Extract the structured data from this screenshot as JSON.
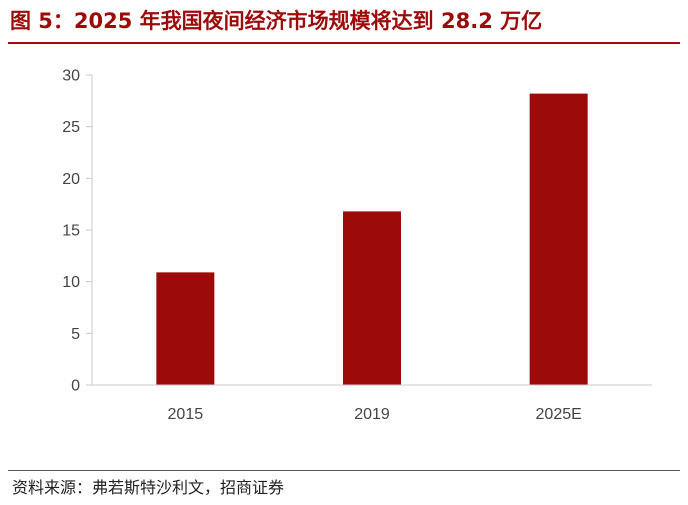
{
  "title": "图 5：2025 年我国夜间经济市场规模将达到 28.2 万亿",
  "source": "资料来源：弗若斯特沙利文，招商证券",
  "colors": {
    "accent": "#9c0a0a",
    "bar": "#9c0a0a",
    "axis": "#c8c8c8",
    "tick_text": "#444444"
  },
  "chart_data": {
    "type": "bar",
    "title": "图 5：2025 年我国夜间经济市场规模将达到 28.2 万亿",
    "categories": [
      "2015",
      "2019",
      "2025E"
    ],
    "values": [
      10.9,
      16.8,
      28.2
    ],
    "xlabel": "",
    "ylabel": "",
    "ylim": [
      0,
      30
    ],
    "yticks": [
      0,
      5,
      10,
      15,
      20,
      25,
      30
    ],
    "grid": false,
    "legend": "none"
  }
}
